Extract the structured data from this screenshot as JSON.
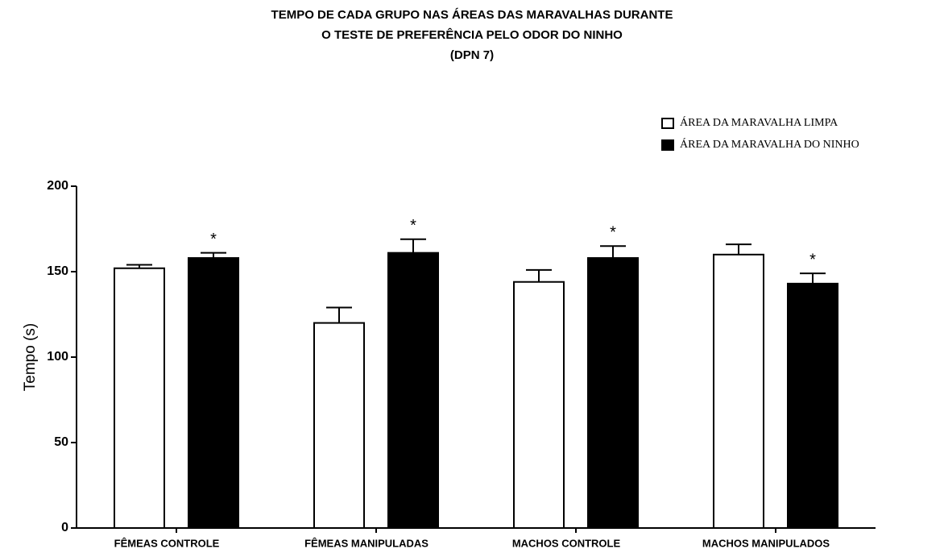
{
  "chart_data": {
    "type": "bar",
    "title": [
      "TEMPO DE CADA GRUPO NAS ÁREAS DAS MARAVALHAS DURANTE",
      "O TESTE DE PREFERÊNCIA PELO ODOR DO NINHO",
      "(DPN 7)"
    ],
    "y_label": "Tempo (s)",
    "categories": [
      "FÊMEAS CONTROLE",
      "FÊMEAS MANIPULADAS",
      "MACHOS CONTROLE",
      "MACHOS MANIPULADOS"
    ],
    "series": [
      {
        "name": "ÁREA DA MARAVALHA LIMPA",
        "color": "#ffffff",
        "values": [
          152,
          120,
          144,
          160
        ],
        "errors": [
          2,
          9,
          7,
          6
        ]
      },
      {
        "name": "ÁREA DA MARAVALHA DO NINHO",
        "color": "#000000",
        "values": [
          158,
          161,
          158,
          143
        ],
        "errors": [
          3,
          8,
          7,
          6
        ],
        "markers": [
          "*",
          "*",
          "*",
          "*"
        ]
      }
    ],
    "ylim": [
      0,
      200
    ],
    "yticks": [
      0,
      50,
      100,
      150,
      200
    ],
    "legend": "top-right"
  }
}
